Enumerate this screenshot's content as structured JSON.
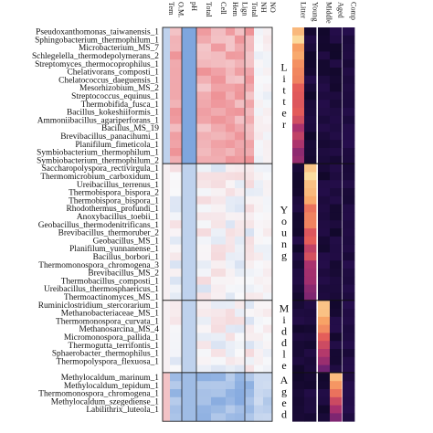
{
  "chart_data": {
    "type": "heatmap",
    "title": "",
    "left_columns": [
      "Tem",
      "O.M.",
      "pH",
      "Total",
      "Cell",
      "Hem",
      "Lign",
      "Total",
      "NH",
      "NO"
    ],
    "right_columns": [
      "Litter",
      "Young",
      "Middle",
      "Aged",
      "Comp"
    ],
    "groups": [
      {
        "label": "Litter",
        "letters": [
          "L",
          "i",
          "t",
          "t",
          "e",
          "r"
        ],
        "start": 0,
        "end": 16
      },
      {
        "label": "Young",
        "letters": [
          "Y",
          "o",
          "u",
          "n",
          "g"
        ],
        "start": 17,
        "end": 33
      },
      {
        "label": "Middle",
        "letters": [
          "M",
          "i",
          "d",
          "d",
          "l",
          "e"
        ],
        "start": 34,
        "end": 42
      },
      {
        "label": "Aged",
        "letters": [
          "A",
          "g",
          "e",
          "d"
        ],
        "start": 43,
        "end": 48
      }
    ],
    "rows": [
      "Pseudoxanthomonas_taiwanensis_1",
      "Sphingobacterium_thermophilum_1",
      "Microbacterium_MS_7",
      "Schlegelella_thermodepolymerans_2",
      "Streptomyces_thermocoprophilus_1",
      "Chelativorans_composti_1",
      "Chelatococcus_daeguensis_1",
      "Mesorhizobium_MS_2",
      "Streptococcus_equinus_1",
      "Thermobifida_fusca_1",
      "Bacillus_kokeshiiformis_1",
      "Ammoniibacillus_agariperforans_1",
      "Bacillus_MS_19",
      "Brevibacillus_panacihumi_1",
      "Planifilum_fimeticola_1",
      "Symbiobacterium_thermophilum_1",
      "Symbiobacterium_thermophilum_2",
      "Saccharopolyspora_rectivirgula_1",
      "Thermomicrobium_carboxidum_1",
      "Ureibacillus_terrenus_1",
      "Thermobispora_bispora_2",
      "Thermobispora_bispora_1",
      "Rhodothermus_profundi_1",
      "Anoxybacillus_toebii_1",
      "Geobacillus_thermodenitrificans_1",
      "Brevibacillus_thermoruber_2",
      "Geobacillus_MS_1",
      "Planifilum_yunnanense_1",
      "Bacillus_borbori_1",
      "Thermomonospora_chromogena_3",
      "Brevibacillus_MS_2",
      "Thermobacillus_composti_1",
      "Ureibacillus_thermosphaericus_1",
      "Thermoactinomyces_MS_1",
      "Ruminiclostridium_stercorarium_1",
      "Methanobacteriaceae_MS_1",
      "Thermomonospora_curvata_1",
      "Methanosarcina_MS_4",
      "Micromonospora_pallida_1",
      "Thermogutta_terrifontis_1",
      "Sphaerobacter_thermophilus_1",
      "Thermopolyspora_flexuosa_1",
      "",
      "Methylocaldum_marinum_1",
      "Methylocaldum_tepidum_1",
      "Thermomonospora_chromogena_1",
      "Methylocaldum_szegediense_1",
      "Labilithrix_luteola_1",
      ""
    ]
  }
}
